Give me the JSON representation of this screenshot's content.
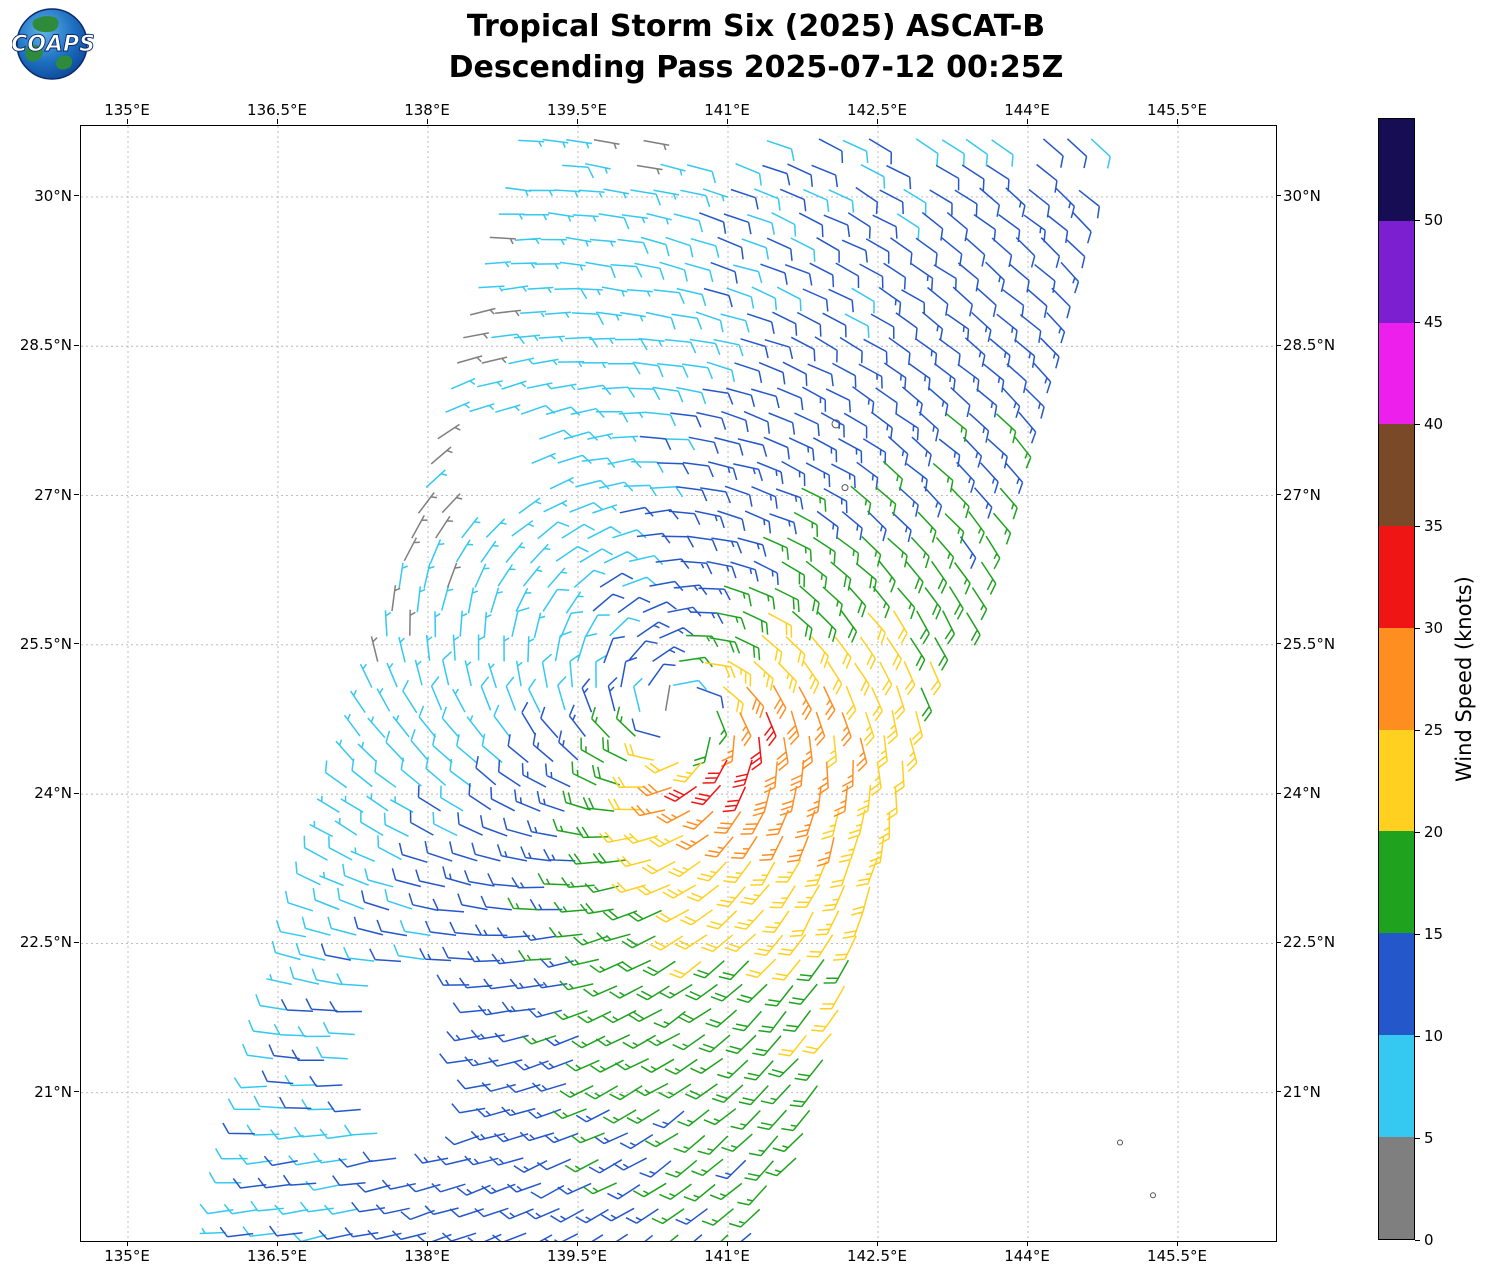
{
  "header": {
    "logo_text": "COAPS",
    "title_line1": "Tropical Storm Six (2025) ASCAT-B",
    "title_line2": "Descending Pass 2025-07-12 00:25Z"
  },
  "axes": {
    "lon_tick_labels": [
      "135°E",
      "136.5°E",
      "138°E",
      "139.5°E",
      "141°E",
      "142.5°E",
      "144°E",
      "145.5°E"
    ],
    "lon_tick_values": [
      135,
      136.5,
      138,
      139.5,
      141,
      142.5,
      144,
      145.5
    ],
    "lat_tick_labels": [
      "21°N",
      "22.5°N",
      "24°N",
      "25.5°N",
      "27°N",
      "28.5°N",
      "30°N"
    ],
    "lat_tick_values": [
      21,
      22.5,
      24,
      25.5,
      27,
      28.5,
      30
    ],
    "lon_range": [
      134.53,
      146.48
    ],
    "lat_range": [
      19.51,
      30.713
    ],
    "grid_on": true
  },
  "colorbar": {
    "label": "Wind Speed (knots)",
    "tick_labels": [
      "0",
      "5",
      "10",
      "15",
      "20",
      "25",
      "30",
      "35",
      "40",
      "45",
      "50"
    ],
    "tick_values": [
      0,
      5,
      10,
      15,
      20,
      25,
      30,
      35,
      40,
      45,
      50
    ],
    "value_max": 55,
    "bins": [
      {
        "min": 0,
        "max": 5,
        "color": "#7f7f7f"
      },
      {
        "min": 5,
        "max": 10,
        "color": "#35c8f0"
      },
      {
        "min": 10,
        "max": 15,
        "color": "#2457c9"
      },
      {
        "min": 15,
        "max": 20,
        "color": "#1fa31f"
      },
      {
        "min": 20,
        "max": 25,
        "color": "#ffd020"
      },
      {
        "min": 25,
        "max": 30,
        "color": "#ff8e21"
      },
      {
        "min": 30,
        "max": 35,
        "color": "#f01515"
      },
      {
        "min": 35,
        "max": 40,
        "color": "#7a4a28"
      },
      {
        "min": 40,
        "max": 45,
        "color": "#ec1fec"
      },
      {
        "min": 45,
        "max": 50,
        "color": "#7c1fd0"
      },
      {
        "min": 50,
        "max": 55,
        "color": "#160d54"
      }
    ]
  },
  "chart_data": {
    "type": "wind_barb_map",
    "title": "Tropical Storm Six (2025) ASCAT-B",
    "subtitle": "Descending Pass 2025-07-12 00:25Z",
    "storm_name": "Tropical Storm Six",
    "season": "2025",
    "satellite": "ASCAT-B",
    "pass_type": "Descending",
    "datetime_utc": "2025-07-12 00:25Z",
    "units": "knots",
    "grid_spacing_deg": 0.25,
    "storm_center": {
      "lon": 140.6,
      "lat": 24.75
    },
    "vortex_model": {
      "vmax_kt": 24,
      "rmax_deg": 0.65,
      "decay_exp": 0.4,
      "asym_amp": 0.25,
      "asym_dir_deg": -50,
      "inflow_deg": 18,
      "background_u_kt": 0,
      "background_v_kt": 5
    },
    "swath": {
      "lat_min": 19.58,
      "lat_max": 30.62,
      "left_lon_at_30p5": 138.75,
      "left_slope_deg_per_deg": 0.264,
      "right_lon_at_30p5": 144.85,
      "right_slope_deg_per_deg": 0.31
    },
    "voids": [
      {
        "lon": 138.55,
        "lat": 27.25,
        "rx": 0.45,
        "ry": 0.6
      },
      {
        "lon": 137.9,
        "lat": 21.3,
        "rx": 0.55,
        "ry": 1.0
      },
      {
        "lon": 140.6,
        "lat": 24.72,
        "rx": 0.24,
        "ry": 0.2
      }
    ],
    "calm_patch": {
      "lon_min": 139.55,
      "lon_max": 140.35,
      "lat_min": 30.15,
      "factor": 0.4
    },
    "islands": [
      {
        "lon": 142.08,
        "lat": 27.72,
        "r": 4
      },
      {
        "lon": 142.17,
        "lat": 27.08,
        "r": 3
      },
      {
        "lon": 144.92,
        "lat": 20.5,
        "r": 2.5
      },
      {
        "lon": 145.25,
        "lat": 19.97,
        "r": 2.5
      }
    ],
    "speed_bins_kt": [
      0,
      5,
      10,
      15,
      20,
      25,
      30,
      35,
      40,
      45,
      50,
      55
    ]
  }
}
